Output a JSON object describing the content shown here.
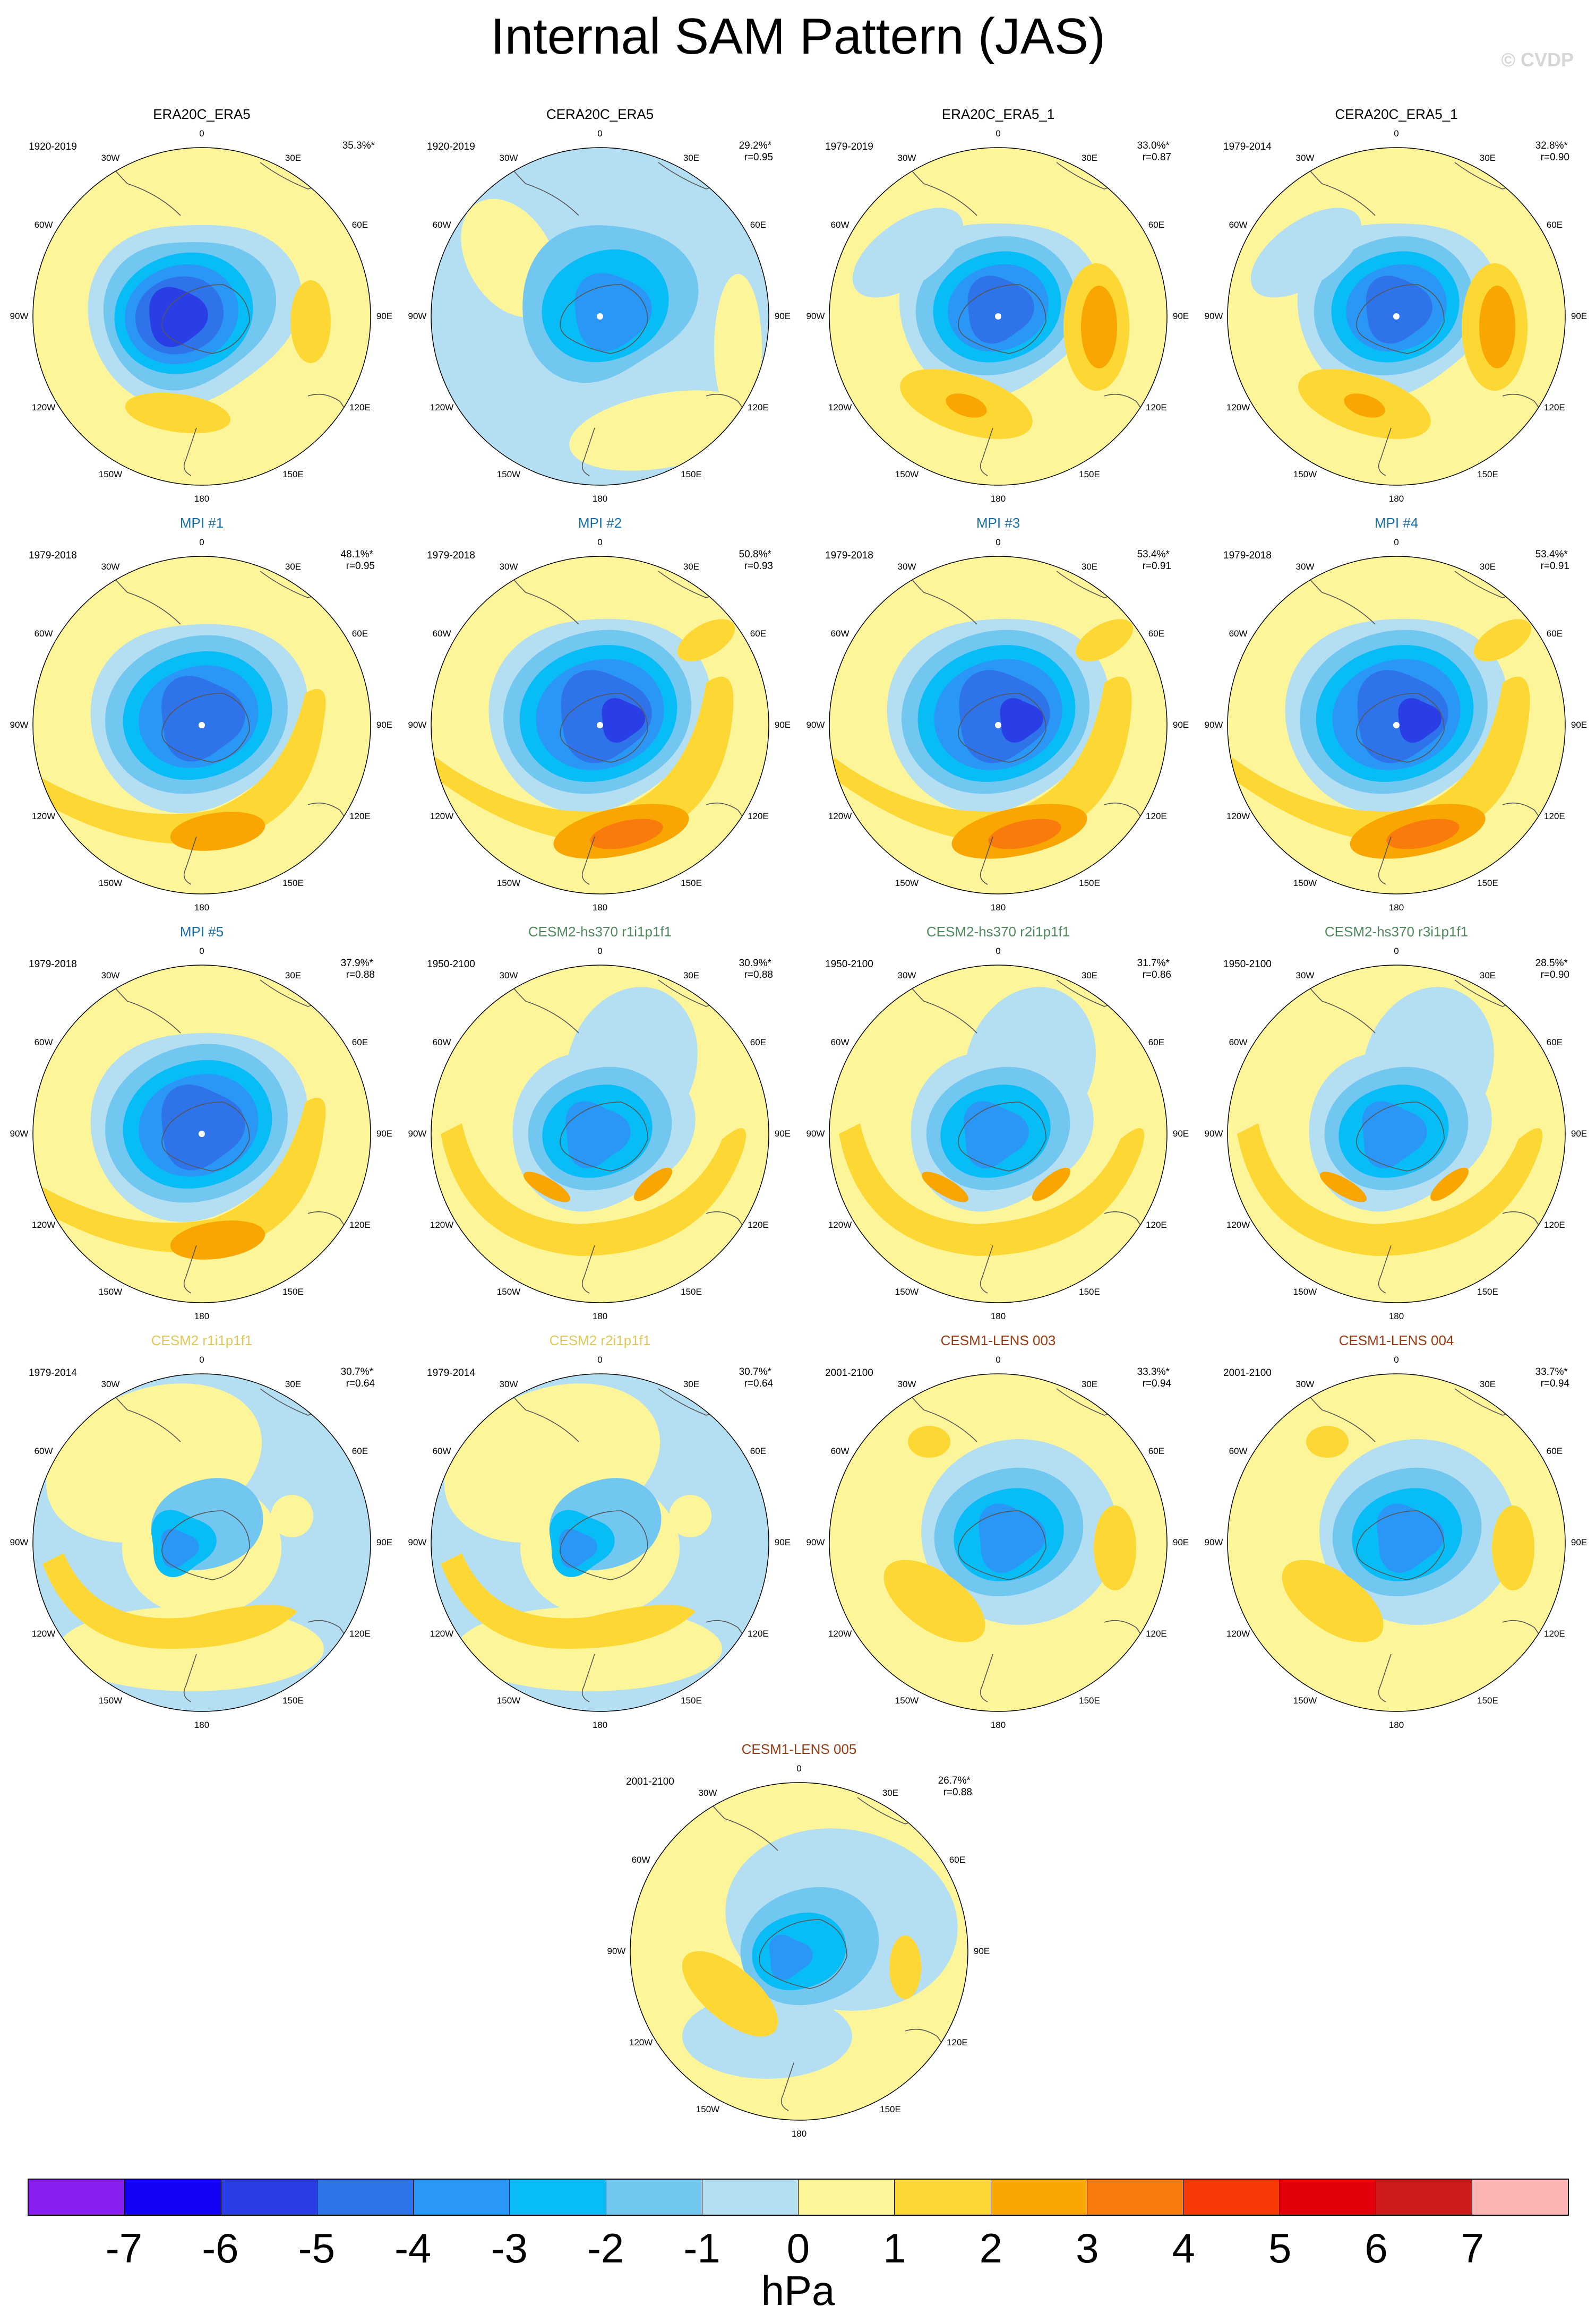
{
  "title": "Internal SAM Pattern (JAS)",
  "copyright": "© CVDP",
  "lon_labels": [
    "0",
    "30E",
    "60E",
    "90E",
    "120E",
    "150E",
    "180",
    "150W",
    "120W",
    "90W",
    "60W",
    "30W"
  ],
  "panels": [
    {
      "title": "ERA20C_ERA5",
      "title_color": "#000000",
      "period": "1920-2019",
      "pct": "35.3%*",
      "r": "",
      "pattern": "era_a"
    },
    {
      "title": "CERA20C_ERA5",
      "title_color": "#000000",
      "period": "1920-2019",
      "pct": "29.2%*",
      "r": "r=0.95",
      "pattern": "cera"
    },
    {
      "title": "ERA20C_ERA5_1",
      "title_color": "#000000",
      "period": "1979-2019",
      "pct": "33.0%*",
      "r": "r=0.87",
      "pattern": "era_b"
    },
    {
      "title": "CERA20C_ERA5_1",
      "title_color": "#000000",
      "period": "1979-2014",
      "pct": "32.8%*",
      "r": "r=0.90",
      "pattern": "era_b"
    },
    {
      "title": "MPI #1",
      "title_color": "#1a6fa8",
      "period": "1979-2018",
      "pct": "48.1%*",
      "r": "r=0.95",
      "pattern": "mpi"
    },
    {
      "title": "MPI #2",
      "title_color": "#1a6fa8",
      "period": "1979-2018",
      "pct": "50.8%*",
      "r": "r=0.93",
      "pattern": "mpi_strong"
    },
    {
      "title": "MPI #3",
      "title_color": "#1a6fa8",
      "period": "1979-2018",
      "pct": "53.4%*",
      "r": "r=0.91",
      "pattern": "mpi_strong"
    },
    {
      "title": "MPI #4",
      "title_color": "#1a6fa8",
      "period": "1979-2018",
      "pct": "53.4%*",
      "r": "r=0.91",
      "pattern": "mpi_strong"
    },
    {
      "title": "MPI #5",
      "title_color": "#1a6fa8",
      "period": "1979-2018",
      "pct": "37.9%*",
      "r": "r=0.88",
      "pattern": "mpi"
    },
    {
      "title": "CESM2-hs370 r1i1p1f1",
      "title_color": "#4f8a5e",
      "period": "1950-2100",
      "pct": "30.9%*",
      "r": "r=0.88",
      "pattern": "cesm2hs"
    },
    {
      "title": "CESM2-hs370 r2i1p1f1",
      "title_color": "#4f8a5e",
      "period": "1950-2100",
      "pct": "31.7%*",
      "r": "r=0.86",
      "pattern": "cesm2hs"
    },
    {
      "title": "CESM2-hs370 r3i1p1f1",
      "title_color": "#4f8a5e",
      "period": "1950-2100",
      "pct": "28.5%*",
      "r": "r=0.90",
      "pattern": "cesm2hs"
    },
    {
      "title": "CESM2 r1i1p1f1",
      "title_color": "#e0c95a",
      "period": "1979-2014",
      "pct": "30.7%*",
      "r": "r=0.64",
      "pattern": "cesm2"
    },
    {
      "title": "CESM2 r2i1p1f1",
      "title_color": "#e0c95a",
      "period": "1979-2014",
      "pct": "30.7%*",
      "r": "r=0.64",
      "pattern": "cesm2"
    },
    {
      "title": "CESM1-LENS 003",
      "title_color": "#9a3b12",
      "period": "2001-2100",
      "pct": "33.3%*",
      "r": "r=0.94",
      "pattern": "lens"
    },
    {
      "title": "CESM1-LENS 004",
      "title_color": "#9a3b12",
      "period": "2001-2100",
      "pct": "33.7%*",
      "r": "r=0.94",
      "pattern": "lens"
    },
    {
      "title": "CESM1-LENS 005",
      "title_color": "#9a3b12",
      "period": "2001-2100",
      "pct": "26.7%*",
      "r": "r=0.88",
      "pattern": "lens_weak"
    }
  ],
  "colorbar": {
    "colors": [
      "#8a1ff2",
      "#1400f5",
      "#2a3ee6",
      "#2f73ea",
      "#2a96f5",
      "#08bdf5",
      "#72c7f0",
      "#b4dff2",
      "#fdf59a",
      "#fdd835",
      "#f9a602",
      "#f97b0b",
      "#f83a06",
      "#e3000a",
      "#cf1b1b",
      "#feb4b4"
    ],
    "ticks": [
      "-7",
      "-6",
      "-5",
      "-4",
      "-3",
      "-2",
      "-1",
      "0",
      "1",
      "2",
      "3",
      "4",
      "5",
      "6",
      "7"
    ],
    "units": "hPa"
  }
}
